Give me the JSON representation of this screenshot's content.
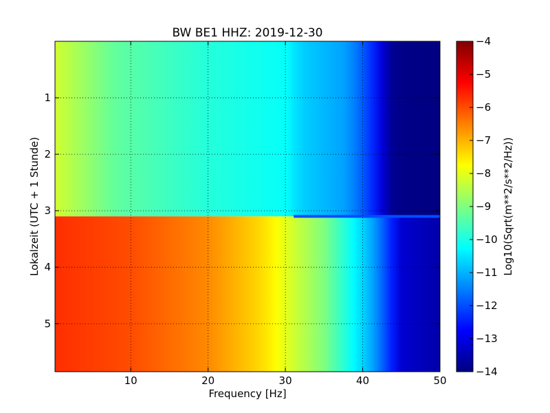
{
  "chart_data": {
    "type": "heatmap",
    "title": "BW BE1 HHZ: 2019-12-30",
    "xlabel": "Frequency [Hz]",
    "ylabel": "Lokalzeit (UTC + 1 Stunde)",
    "xlim": [
      0.2,
      50
    ],
    "ylim": [
      5.85,
      0
    ],
    "x_ticks": [
      10,
      20,
      30,
      40,
      50
    ],
    "x_tick_labels": [
      "10",
      "20",
      "30",
      "40",
      "50"
    ],
    "y_ticks": [
      1,
      2,
      3,
      4,
      5
    ],
    "y_tick_labels": [
      "1",
      "2",
      "3",
      "4",
      "5"
    ],
    "grid": true,
    "colorbar": {
      "label": "Log10(Sqrt(m**2/s**2/Hz))",
      "range": [
        -14,
        -4
      ],
      "ticks": [
        -4,
        -5,
        -6,
        -7,
        -8,
        -9,
        -10,
        -11,
        -12,
        -13,
        -14
      ],
      "tick_labels": [
        "−4",
        "−5",
        "−6",
        "−7",
        "−8",
        "−9",
        "−10",
        "−11",
        "−12",
        "−13",
        "−14"
      ],
      "colormap": "jet"
    },
    "regimes": [
      {
        "time_range": [
          0,
          3.1
        ],
        "freq_profile": [
          {
            "f": 0.2,
            "v": -8.2
          },
          {
            "f": 3,
            "v": -8.6
          },
          {
            "f": 8,
            "v": -9.3
          },
          {
            "f": 20,
            "v": -9.9
          },
          {
            "f": 30,
            "v": -10.2
          },
          {
            "f": 32,
            "v": -10.7
          },
          {
            "f": 38,
            "v": -11.2
          },
          {
            "f": 41,
            "v": -12.2
          },
          {
            "f": 43,
            "v": -13.4
          },
          {
            "f": 44,
            "v": -13.9
          },
          {
            "f": 50,
            "v": -14.0
          }
        ]
      },
      {
        "time_range": [
          3.1,
          5.85
        ],
        "freq_profile": [
          {
            "f": 0.2,
            "v": -5.7
          },
          {
            "f": 10,
            "v": -6.0
          },
          {
            "f": 20,
            "v": -6.6
          },
          {
            "f": 27,
            "v": -7.4
          },
          {
            "f": 30,
            "v": -8.0
          },
          {
            "f": 35,
            "v": -9.0
          },
          {
            "f": 38,
            "v": -10.0
          },
          {
            "f": 41,
            "v": -11.0
          },
          {
            "f": 43,
            "v": -12.0
          },
          {
            "f": 45,
            "v": -13.2
          },
          {
            "f": 50,
            "v": -13.6
          }
        ]
      }
    ],
    "transition_band": {
      "time": 3.1,
      "value": -12.0
    }
  }
}
